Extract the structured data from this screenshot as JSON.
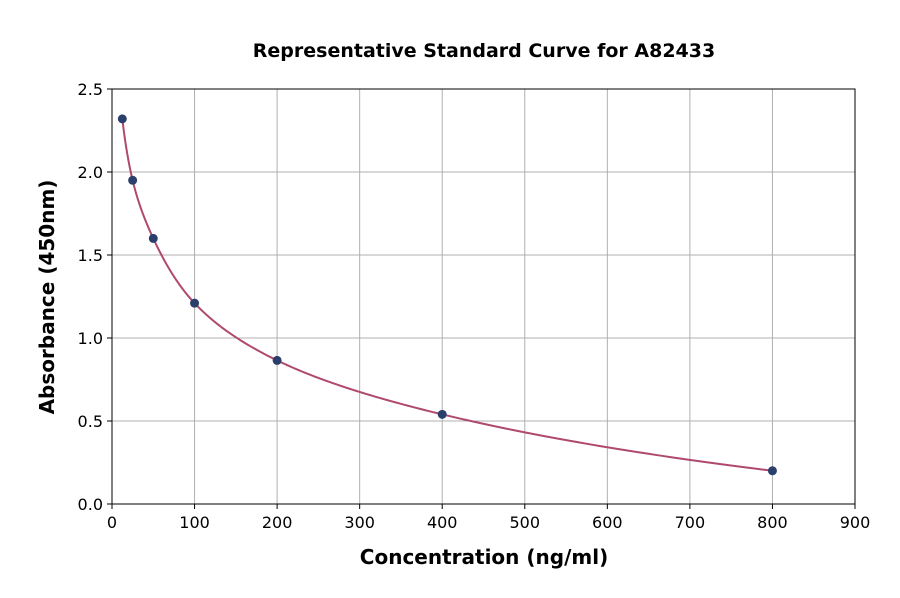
{
  "chart_data": {
    "type": "scatter",
    "title": "Representative Standard Curve for A82433",
    "xlabel": "Concentration (ng/ml)",
    "ylabel": "Absorbance (450nm)",
    "xlim": [
      0,
      900
    ],
    "ylim": [
      0,
      2.5
    ],
    "xticks": [
      "0",
      "100",
      "200",
      "300",
      "400",
      "500",
      "600",
      "700",
      "800",
      "900"
    ],
    "yticks": [
      "0.0",
      "0.5",
      "1.0",
      "1.5",
      "2.0",
      "2.5"
    ],
    "grid": true,
    "x": [
      12.5,
      25,
      50,
      100,
      200,
      400,
      800
    ],
    "y": [
      2.32,
      1.95,
      1.6,
      1.21,
      0.865,
      0.54,
      0.2
    ],
    "fit_curve": true,
    "colors": {
      "points": "#2b3f6b",
      "curve": "#b0496f",
      "grid": "#b0b0b0"
    }
  }
}
